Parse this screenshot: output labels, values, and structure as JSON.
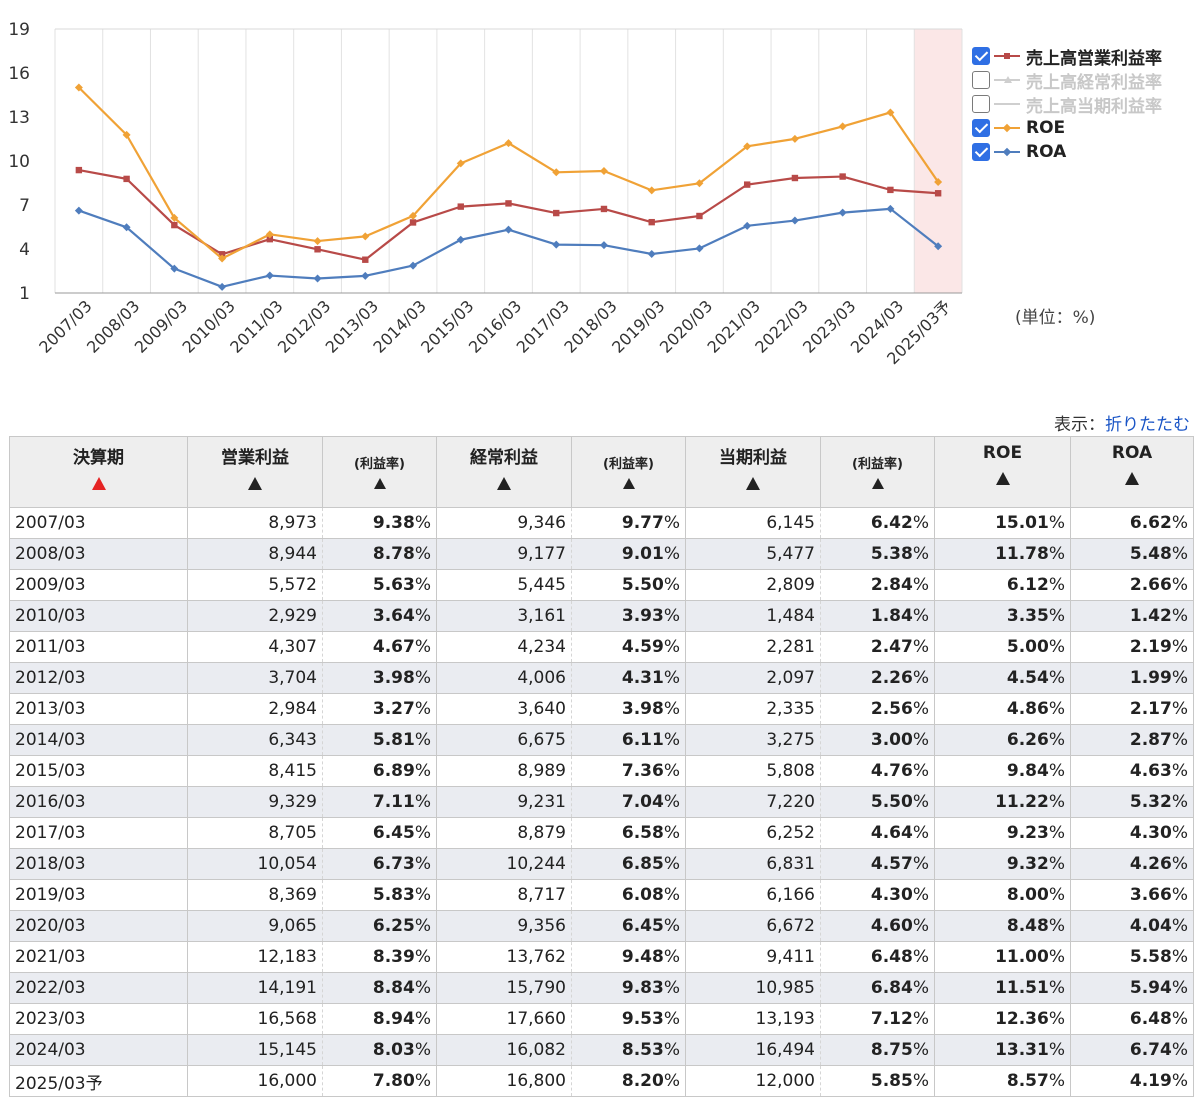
{
  "chart_data": {
    "type": "line",
    "categories": [
      "2007/03",
      "2008/03",
      "2009/03",
      "2010/03",
      "2011/03",
      "2012/03",
      "2013/03",
      "2014/03",
      "2015/03",
      "2016/03",
      "2017/03",
      "2018/03",
      "2019/03",
      "2020/03",
      "2021/03",
      "2022/03",
      "2023/03",
      "2024/03",
      "2025/03予"
    ],
    "y_ticks": [
      1,
      4,
      7,
      10,
      13,
      16,
      19
    ],
    "ylim": [
      1,
      19
    ],
    "highlight_category": "2025/03予",
    "series": [
      {
        "name": "売上高営業利益率",
        "checked": true,
        "color": "#b84a48",
        "marker": "square",
        "values": [
          9.38,
          8.78,
          5.63,
          3.64,
          4.67,
          3.98,
          3.27,
          5.81,
          6.89,
          7.11,
          6.45,
          6.73,
          5.83,
          6.25,
          8.39,
          8.84,
          8.94,
          8.03,
          7.8
        ]
      },
      {
        "name": "売上高経常利益率",
        "checked": false,
        "color": "#c8c8c8",
        "marker": "triangle",
        "values": [
          9.77,
          9.01,
          5.5,
          3.93,
          4.59,
          4.31,
          3.98,
          6.11,
          7.36,
          7.04,
          6.58,
          6.85,
          6.08,
          6.45,
          9.48,
          9.83,
          9.53,
          8.53,
          8.2
        ]
      },
      {
        "name": "売上高当期利益率",
        "checked": false,
        "color": "#c8c8c8",
        "marker": "none",
        "values": [
          6.42,
          5.38,
          2.84,
          1.84,
          2.47,
          2.26,
          2.56,
          3.0,
          4.76,
          5.5,
          4.64,
          4.57,
          4.3,
          4.6,
          6.48,
          6.84,
          7.12,
          8.75,
          5.85
        ]
      },
      {
        "name": "ROE",
        "checked": true,
        "color": "#f0a236",
        "marker": "diamond",
        "values": [
          15.01,
          11.78,
          6.12,
          3.35,
          5.0,
          4.54,
          4.86,
          6.26,
          9.84,
          11.22,
          9.23,
          9.32,
          8.0,
          8.48,
          11.0,
          11.51,
          12.36,
          13.31,
          8.57
        ]
      },
      {
        "name": "ROA",
        "checked": true,
        "color": "#4f7dbd",
        "marker": "diamond",
        "values": [
          6.62,
          5.48,
          2.66,
          1.42,
          2.19,
          1.99,
          2.17,
          2.87,
          4.63,
          5.32,
          4.3,
          4.26,
          3.66,
          4.04,
          5.58,
          5.94,
          6.48,
          6.74,
          4.19
        ]
      }
    ],
    "legend_position": "right",
    "grid": "vertical"
  },
  "unit_label": "(単位：%)",
  "display": {
    "label": "表示：",
    "link": "折りたたむ"
  },
  "table": {
    "headers": {
      "period": "決算期",
      "op_profit": "営業利益",
      "op_margin": "(利益率)",
      "ord_profit": "経常利益",
      "ord_margin": "(利益率)",
      "net_profit": "当期利益",
      "net_margin": "(利益率)",
      "roe": "ROE",
      "roa": "ROA"
    },
    "percent_sign": "%",
    "rows": [
      {
        "period": "2007/03",
        "op": "8,973",
        "opm": "9.38",
        "ord": "9,346",
        "ordm": "9.77",
        "net": "6,145",
        "netm": "6.42",
        "roe": "15.01",
        "roa": "6.62"
      },
      {
        "period": "2008/03",
        "op": "8,944",
        "opm": "8.78",
        "ord": "9,177",
        "ordm": "9.01",
        "net": "5,477",
        "netm": "5.38",
        "roe": "11.78",
        "roa": "5.48"
      },
      {
        "period": "2009/03",
        "op": "5,572",
        "opm": "5.63",
        "ord": "5,445",
        "ordm": "5.50",
        "net": "2,809",
        "netm": "2.84",
        "roe": "6.12",
        "roa": "2.66"
      },
      {
        "period": "2010/03",
        "op": "2,929",
        "opm": "3.64",
        "ord": "3,161",
        "ordm": "3.93",
        "net": "1,484",
        "netm": "1.84",
        "roe": "3.35",
        "roa": "1.42"
      },
      {
        "period": "2011/03",
        "op": "4,307",
        "opm": "4.67",
        "ord": "4,234",
        "ordm": "4.59",
        "net": "2,281",
        "netm": "2.47",
        "roe": "5.00",
        "roa": "2.19"
      },
      {
        "period": "2012/03",
        "op": "3,704",
        "opm": "3.98",
        "ord": "4,006",
        "ordm": "4.31",
        "net": "2,097",
        "netm": "2.26",
        "roe": "4.54",
        "roa": "1.99"
      },
      {
        "period": "2013/03",
        "op": "2,984",
        "opm": "3.27",
        "ord": "3,640",
        "ordm": "3.98",
        "net": "2,335",
        "netm": "2.56",
        "roe": "4.86",
        "roa": "2.17"
      },
      {
        "period": "2014/03",
        "op": "6,343",
        "opm": "5.81",
        "ord": "6,675",
        "ordm": "6.11",
        "net": "3,275",
        "netm": "3.00",
        "roe": "6.26",
        "roa": "2.87"
      },
      {
        "period": "2015/03",
        "op": "8,415",
        "opm": "6.89",
        "ord": "8,989",
        "ordm": "7.36",
        "net": "5,808",
        "netm": "4.76",
        "roe": "9.84",
        "roa": "4.63"
      },
      {
        "period": "2016/03",
        "op": "9,329",
        "opm": "7.11",
        "ord": "9,231",
        "ordm": "7.04",
        "net": "7,220",
        "netm": "5.50",
        "roe": "11.22",
        "roa": "5.32"
      },
      {
        "period": "2017/03",
        "op": "8,705",
        "opm": "6.45",
        "ord": "8,879",
        "ordm": "6.58",
        "net": "6,252",
        "netm": "4.64",
        "roe": "9.23",
        "roa": "4.30"
      },
      {
        "period": "2018/03",
        "op": "10,054",
        "opm": "6.73",
        "ord": "10,244",
        "ordm": "6.85",
        "net": "6,831",
        "netm": "4.57",
        "roe": "9.32",
        "roa": "4.26"
      },
      {
        "period": "2019/03",
        "op": "8,369",
        "opm": "5.83",
        "ord": "8,717",
        "ordm": "6.08",
        "net": "6,166",
        "netm": "4.30",
        "roe": "8.00",
        "roa": "3.66"
      },
      {
        "period": "2020/03",
        "op": "9,065",
        "opm": "6.25",
        "ord": "9,356",
        "ordm": "6.45",
        "net": "6,672",
        "netm": "4.60",
        "roe": "8.48",
        "roa": "4.04"
      },
      {
        "period": "2021/03",
        "op": "12,183",
        "opm": "8.39",
        "ord": "13,762",
        "ordm": "9.48",
        "net": "9,411",
        "netm": "6.48",
        "roe": "11.00",
        "roa": "5.58"
      },
      {
        "period": "2022/03",
        "op": "14,191",
        "opm": "8.84",
        "ord": "15,790",
        "ordm": "9.83",
        "net": "10,985",
        "netm": "6.84",
        "roe": "11.51",
        "roa": "5.94"
      },
      {
        "period": "2023/03",
        "op": "16,568",
        "opm": "8.94",
        "ord": "17,660",
        "ordm": "9.53",
        "net": "13,193",
        "netm": "7.12",
        "roe": "12.36",
        "roa": "6.48"
      },
      {
        "period": "2024/03",
        "op": "15,145",
        "opm": "8.03",
        "ord": "16,082",
        "ordm": "8.53",
        "net": "16,494",
        "netm": "8.75",
        "roe": "13.31",
        "roa": "6.74"
      },
      {
        "period": "2025/03予",
        "op": "16,000",
        "opm": "7.80",
        "ord": "16,800",
        "ordm": "8.20",
        "net": "12,000",
        "netm": "5.85",
        "roe": "8.57",
        "roa": "4.19"
      }
    ]
  }
}
